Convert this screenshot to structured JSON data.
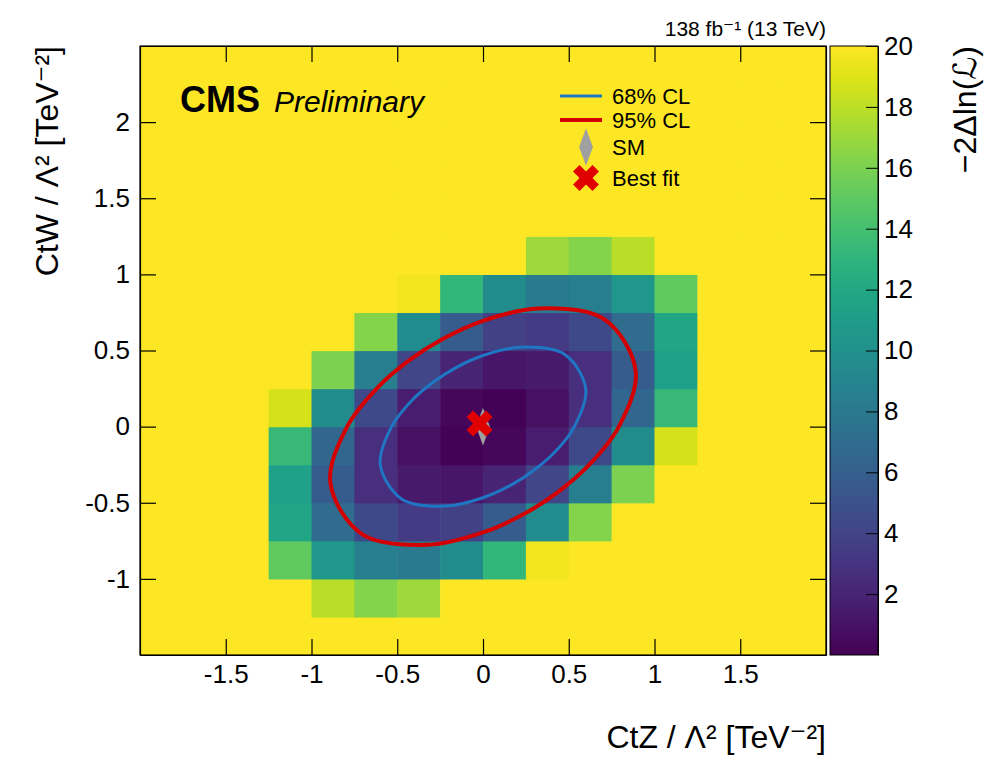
{
  "chart_data": {
    "type": "heatmap",
    "title": "CMS",
    "subtitle": "Preliminary",
    "annotations": [
      "138 fb⁻¹ (13 TeV)"
    ],
    "x_label": "CtZ / Λ² [TeV⁻²]",
    "y_label": "CtW / Λ² [TeV⁻²]",
    "xlim": [
      -2,
      2
    ],
    "ylim": [
      -1.5,
      2.5
    ],
    "xticks": [
      -1.5,
      -1,
      -0.5,
      0,
      0.5,
      1,
      1.5
    ],
    "yticks": [
      -1,
      -0.5,
      0,
      0.5,
      1,
      1.5,
      2
    ],
    "grid": false,
    "legend": "top-right",
    "cells": {
      "x": [
        -1.875,
        -1.625,
        -1.375,
        -1.125,
        -0.875,
        -0.625,
        -0.375,
        -0.125,
        0.125,
        0.375,
        0.625,
        0.875,
        1.125,
        1.375,
        1.625,
        1.875
      ],
      "y": [
        -1.375,
        -1.125,
        -0.875,
        -0.625,
        -0.375,
        -0.125,
        0.125,
        0.375,
        0.625,
        0.875,
        1.125,
        1.375,
        1.625,
        1.875,
        2.125,
        2.375
      ],
      "values": [
        [
          20,
          20,
          20,
          20,
          20,
          20,
          20,
          20,
          20,
          20,
          20,
          20,
          20,
          20,
          20,
          20
        ],
        [
          20,
          20,
          20,
          20,
          17.82,
          16.3,
          17.08,
          20,
          20,
          20,
          20,
          20,
          20,
          20,
          20,
          20
        ],
        [
          20,
          20,
          20,
          15.09,
          10.63,
          8.49,
          8.18,
          9.63,
          13.18,
          19.57,
          20,
          20,
          20,
          20,
          20,
          20
        ],
        [
          20,
          20,
          20,
          11.83,
          6.97,
          4.42,
          3.48,
          3.88,
          5.73,
          9.56,
          16.31,
          20,
          20,
          20,
          20,
          20
        ],
        [
          20,
          20,
          20,
          11.32,
          5.75,
          2.73,
          1.35,
          1.12,
          1.96,
          4.17,
          8.49,
          16.03,
          20,
          20,
          20,
          20
        ],
        [
          20,
          20,
          20,
          13.42,
          6.56,
          2.73,
          0.82,
          0.14,
          0.37,
          1.63,
          4.42,
          9.66,
          18.68,
          20,
          20,
          20
        ],
        [
          20,
          20,
          20,
          18.68,
          9.66,
          4.42,
          1.63,
          0.37,
          0.14,
          0.82,
          2.73,
          6.56,
          13.42,
          20,
          20,
          20
        ],
        [
          20,
          20,
          20,
          20,
          16.03,
          8.49,
          4.17,
          1.96,
          1.12,
          1.35,
          2.73,
          5.75,
          11.32,
          20,
          20,
          20
        ],
        [
          20,
          20,
          20,
          20,
          20,
          16.31,
          9.56,
          5.73,
          3.88,
          3.48,
          4.42,
          6.97,
          11.83,
          20,
          20,
          20
        ],
        [
          20,
          20,
          20,
          20,
          20,
          20,
          19.57,
          13.18,
          9.63,
          8.18,
          8.49,
          10.63,
          15.09,
          20,
          20,
          20
        ],
        [
          20,
          20,
          20,
          20,
          20,
          20,
          20,
          20,
          20,
          17.08,
          16.3,
          17.82,
          20,
          20,
          20,
          20
        ],
        [
          20,
          20,
          20,
          20,
          20,
          20,
          20,
          20,
          20,
          20,
          20,
          20,
          20,
          20,
          20,
          20
        ],
        [
          20,
          20,
          20,
          20,
          20,
          20,
          20,
          20,
          20,
          20,
          20,
          20,
          20,
          20,
          20,
          20
        ],
        [
          20,
          20,
          20,
          20,
          20,
          20,
          20,
          20,
          20,
          20,
          20,
          20,
          20,
          20,
          20,
          20
        ],
        [
          20,
          20,
          20,
          20,
          20,
          20,
          20,
          20,
          20,
          20,
          20,
          20,
          20,
          20,
          20,
          20
        ],
        [
          20,
          20,
          20,
          20,
          20,
          20,
          20,
          20,
          20,
          20,
          20,
          20,
          20,
          20,
          20,
          20
        ]
      ]
    },
    "colorbar": {
      "label": "−2Δln(ℒ)",
      "range": [
        0,
        20
      ],
      "ticks": [
        2,
        4,
        6,
        8,
        10,
        12,
        14,
        16,
        18,
        20
      ]
    },
    "series": [
      {
        "name": "68% CL",
        "type": "line",
        "color": "#1f77c4",
        "x": [
          0.533,
          0.599,
          0.475,
          0.217,
          0,
          -0.16,
          -0.291,
          -0.415,
          -0.533,
          -0.599,
          -0.475,
          -0.217,
          0,
          0.16,
          0.291,
          0.415
        ],
        "y": [
          0,
          0.248,
          0.475,
          0.522,
          0.467,
          0.386,
          0.291,
          0.172,
          0,
          -0.248,
          -0.475,
          -0.522,
          -0.467,
          -0.386,
          -0.291,
          -0.172
        ]
      },
      {
        "name": "95% CL",
        "type": "line",
        "color": "#d40000",
        "x": [
          0.792,
          0.89,
          0.706,
          0.322,
          0,
          -0.238,
          -0.433,
          -0.616,
          -0.792,
          -0.89,
          -0.706,
          -0.322,
          0,
          0.238,
          0.433,
          0.616
        ],
        "y": [
          0,
          0.369,
          0.706,
          0.776,
          0.695,
          0.574,
          0.433,
          0.255,
          0,
          -0.369,
          -0.706,
          -0.776,
          -0.695,
          -0.574,
          -0.433,
          -0.255
        ]
      },
      {
        "name": "SM",
        "type": "scatter",
        "marker": "diamond",
        "color": "#a0a0a0",
        "x": [
          0
        ],
        "y": [
          0
        ]
      },
      {
        "name": "Best fit",
        "type": "scatter",
        "marker": "cross",
        "color": "#e00000",
        "x": [
          -0.02
        ],
        "y": [
          0.02
        ]
      }
    ]
  }
}
